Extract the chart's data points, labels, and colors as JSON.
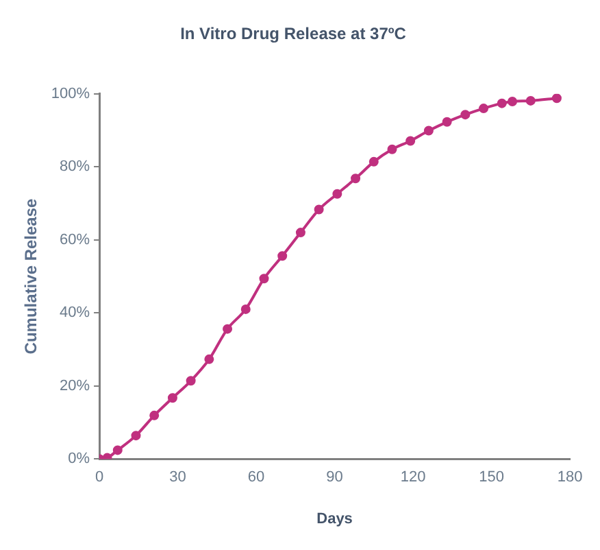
{
  "chart_data": {
    "type": "line",
    "title": "In Vitro Drug Release at 37ºC",
    "xlabel": "Days",
    "ylabel": "Cumulative Release",
    "x": [
      0,
      3,
      7,
      14,
      21,
      28,
      35,
      42,
      49,
      56,
      63,
      70,
      77,
      84,
      91,
      98,
      105,
      112,
      119,
      126,
      133,
      140,
      147,
      154,
      158,
      165,
      175
    ],
    "series": [
      {
        "color": "#c0307f",
        "values": [
          0,
          0.3,
          2.4,
          6.4,
          11.9,
          16.7,
          21.4,
          27.3,
          35.6,
          41,
          49.4,
          55.6,
          62,
          68.3,
          72.6,
          76.8,
          81.4,
          84.8,
          87.1,
          89.9,
          92.3,
          94.3,
          96,
          97.4,
          97.9,
          98.1,
          98.8
        ]
      }
    ],
    "xlim": [
      0,
      180
    ],
    "xticks": [
      0,
      30,
      60,
      90,
      120,
      150,
      180
    ],
    "ylim": [
      0,
      100
    ],
    "yticks": [
      {
        "value": 0,
        "label": "0%"
      },
      {
        "value": 20,
        "label": "20%"
      },
      {
        "value": 40,
        "label": "40%"
      },
      {
        "value": 60,
        "label": "60%"
      },
      {
        "value": 80,
        "label": "80%"
      },
      {
        "value": 100,
        "label": "100%"
      }
    ],
    "grid": false,
    "legend": false,
    "marker": "circle",
    "line_style": "solid"
  }
}
